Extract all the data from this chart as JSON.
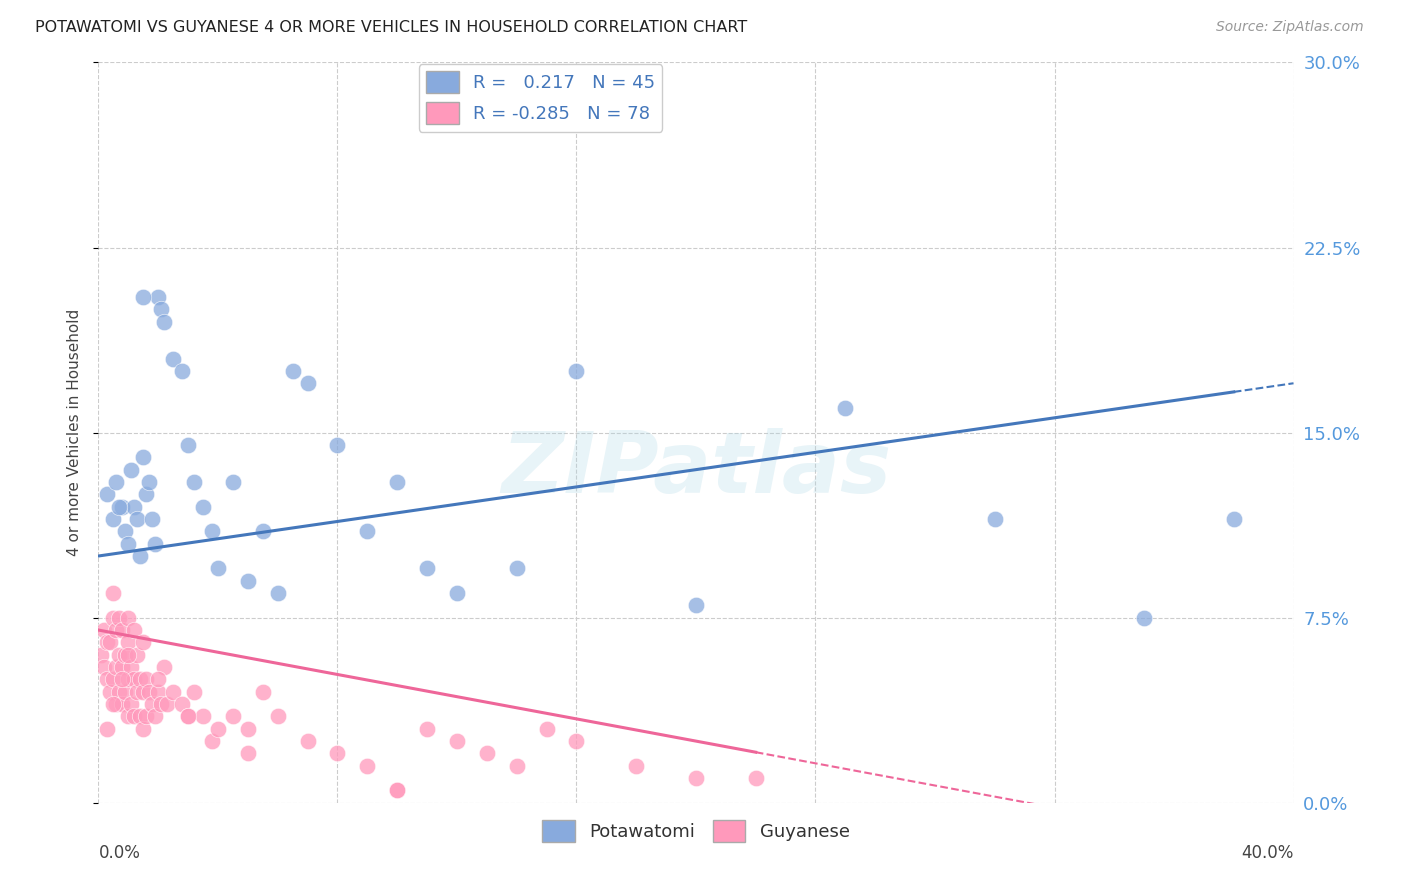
{
  "title": "POTAWATOMI VS GUYANESE 4 OR MORE VEHICLES IN HOUSEHOLD CORRELATION CHART",
  "source": "Source: ZipAtlas.com",
  "ylabel": "4 or more Vehicles in Household",
  "xmin": 0.0,
  "xmax": 40.0,
  "ymin": 0.0,
  "ymax": 30.0,
  "ytick_vals": [
    0.0,
    7.5,
    15.0,
    22.5,
    30.0
  ],
  "xtick_vals": [
    0.0,
    8.0,
    16.0,
    24.0,
    32.0,
    40.0
  ],
  "blue_R": 0.217,
  "blue_N": 45,
  "pink_R": -0.285,
  "pink_N": 78,
  "blue_color": "#88AADD",
  "pink_color": "#FF99BB",
  "blue_line_color": "#4477BB",
  "pink_line_color": "#EE6699",
  "background_color": "#ffffff",
  "grid_color": "#cccccc",
  "watermark": "ZIPatlas",
  "blue_scatter_x": [
    0.3,
    0.5,
    0.6,
    0.8,
    0.9,
    1.0,
    1.1,
    1.2,
    1.3,
    1.4,
    1.5,
    1.6,
    1.7,
    1.8,
    1.9,
    2.0,
    2.1,
    2.2,
    2.5,
    2.8,
    3.0,
    3.2,
    3.5,
    3.8,
    4.0,
    4.5,
    5.0,
    5.5,
    6.0,
    6.5,
    7.0,
    8.0,
    9.0,
    10.0,
    11.0,
    12.0,
    14.0,
    16.0,
    20.0,
    25.0,
    30.0,
    35.0,
    38.0,
    0.7,
    1.5
  ],
  "blue_scatter_y": [
    12.5,
    11.5,
    13.0,
    12.0,
    11.0,
    10.5,
    13.5,
    12.0,
    11.5,
    10.0,
    14.0,
    12.5,
    13.0,
    11.5,
    10.5,
    20.5,
    20.0,
    19.5,
    18.0,
    17.5,
    14.5,
    13.0,
    12.0,
    11.0,
    9.5,
    13.0,
    9.0,
    11.0,
    8.5,
    17.5,
    17.0,
    14.5,
    11.0,
    13.0,
    9.5,
    8.5,
    9.5,
    17.5,
    8.0,
    16.0,
    11.5,
    7.5,
    11.5,
    12.0,
    20.5
  ],
  "pink_scatter_x": [
    0.1,
    0.2,
    0.2,
    0.3,
    0.3,
    0.4,
    0.4,
    0.5,
    0.5,
    0.5,
    0.6,
    0.6,
    0.6,
    0.7,
    0.7,
    0.7,
    0.8,
    0.8,
    0.8,
    0.9,
    0.9,
    1.0,
    1.0,
    1.0,
    1.0,
    1.1,
    1.1,
    1.2,
    1.2,
    1.2,
    1.3,
    1.3,
    1.4,
    1.4,
    1.5,
    1.5,
    1.6,
    1.6,
    1.7,
    1.8,
    1.9,
    2.0,
    2.1,
    2.2,
    2.3,
    2.5,
    2.8,
    3.0,
    3.2,
    3.5,
    3.8,
    4.0,
    4.5,
    5.0,
    5.5,
    6.0,
    7.0,
    8.0,
    9.0,
    10.0,
    11.0,
    12.0,
    13.0,
    14.0,
    15.0,
    16.0,
    18.0,
    20.0,
    22.0,
    0.3,
    0.5,
    0.8,
    1.0,
    1.5,
    2.0,
    3.0,
    5.0,
    10.0
  ],
  "pink_scatter_y": [
    6.0,
    5.5,
    7.0,
    5.0,
    6.5,
    4.5,
    6.5,
    5.0,
    7.5,
    8.5,
    4.0,
    5.5,
    7.0,
    4.5,
    6.0,
    7.5,
    4.0,
    5.5,
    7.0,
    4.5,
    6.0,
    3.5,
    5.0,
    6.5,
    7.5,
    4.0,
    5.5,
    3.5,
    5.0,
    7.0,
    4.5,
    6.0,
    3.5,
    5.0,
    3.0,
    4.5,
    3.5,
    5.0,
    4.5,
    4.0,
    3.5,
    4.5,
    4.0,
    5.5,
    4.0,
    4.5,
    4.0,
    3.5,
    4.5,
    3.5,
    2.5,
    3.0,
    3.5,
    3.0,
    4.5,
    3.5,
    2.5,
    2.0,
    1.5,
    0.5,
    3.0,
    2.5,
    2.0,
    1.5,
    3.0,
    2.5,
    1.5,
    1.0,
    1.0,
    3.0,
    4.0,
    5.0,
    6.0,
    6.5,
    5.0,
    3.5,
    2.0,
    0.5
  ]
}
